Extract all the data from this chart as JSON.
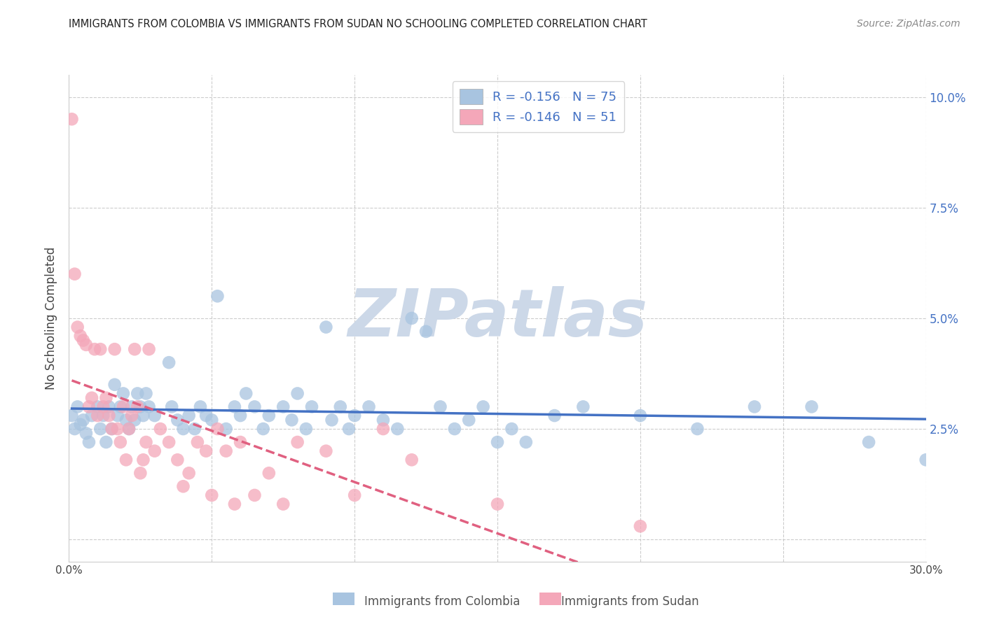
{
  "title": "IMMIGRANTS FROM COLOMBIA VS IMMIGRANTS FROM SUDAN NO SCHOOLING COMPLETED CORRELATION CHART",
  "source": "Source: ZipAtlas.com",
  "ylabel": "No Schooling Completed",
  "xlim": [
    0.0,
    0.3
  ],
  "ylim": [
    -0.005,
    0.105
  ],
  "colombia_color": "#a8c4e0",
  "sudan_color": "#f4a7b9",
  "colombia_line_color": "#4472c4",
  "sudan_line_color": "#e06080",
  "colombia_R": -0.156,
  "colombia_N": 75,
  "sudan_R": -0.146,
  "sudan_N": 51,
  "watermark": "ZIPatlas",
  "watermark_color": "#ccd8e8",
  "legend_label_1": "Immigrants from Colombia",
  "legend_label_2": "Immigrants from Sudan",
  "colombia_scatter": [
    [
      0.001,
      0.028
    ],
    [
      0.002,
      0.025
    ],
    [
      0.003,
      0.03
    ],
    [
      0.004,
      0.026
    ],
    [
      0.005,
      0.027
    ],
    [
      0.006,
      0.024
    ],
    [
      0.007,
      0.022
    ],
    [
      0.008,
      0.028
    ],
    [
      0.01,
      0.03
    ],
    [
      0.011,
      0.025
    ],
    [
      0.012,
      0.028
    ],
    [
      0.013,
      0.022
    ],
    [
      0.014,
      0.03
    ],
    [
      0.015,
      0.025
    ],
    [
      0.016,
      0.035
    ],
    [
      0.017,
      0.028
    ],
    [
      0.018,
      0.03
    ],
    [
      0.019,
      0.033
    ],
    [
      0.02,
      0.027
    ],
    [
      0.021,
      0.025
    ],
    [
      0.022,
      0.03
    ],
    [
      0.023,
      0.027
    ],
    [
      0.024,
      0.033
    ],
    [
      0.025,
      0.03
    ],
    [
      0.026,
      0.028
    ],
    [
      0.027,
      0.033
    ],
    [
      0.028,
      0.03
    ],
    [
      0.03,
      0.028
    ],
    [
      0.035,
      0.04
    ],
    [
      0.036,
      0.03
    ],
    [
      0.038,
      0.027
    ],
    [
      0.04,
      0.025
    ],
    [
      0.042,
      0.028
    ],
    [
      0.044,
      0.025
    ],
    [
      0.046,
      0.03
    ],
    [
      0.048,
      0.028
    ],
    [
      0.05,
      0.027
    ],
    [
      0.052,
      0.055
    ],
    [
      0.055,
      0.025
    ],
    [
      0.058,
      0.03
    ],
    [
      0.06,
      0.028
    ],
    [
      0.062,
      0.033
    ],
    [
      0.065,
      0.03
    ],
    [
      0.068,
      0.025
    ],
    [
      0.07,
      0.028
    ],
    [
      0.075,
      0.03
    ],
    [
      0.078,
      0.027
    ],
    [
      0.08,
      0.033
    ],
    [
      0.083,
      0.025
    ],
    [
      0.085,
      0.03
    ],
    [
      0.09,
      0.048
    ],
    [
      0.092,
      0.027
    ],
    [
      0.095,
      0.03
    ],
    [
      0.098,
      0.025
    ],
    [
      0.1,
      0.028
    ],
    [
      0.105,
      0.03
    ],
    [
      0.11,
      0.027
    ],
    [
      0.115,
      0.025
    ],
    [
      0.12,
      0.05
    ],
    [
      0.125,
      0.047
    ],
    [
      0.13,
      0.03
    ],
    [
      0.135,
      0.025
    ],
    [
      0.14,
      0.027
    ],
    [
      0.145,
      0.03
    ],
    [
      0.15,
      0.022
    ],
    [
      0.155,
      0.025
    ],
    [
      0.16,
      0.022
    ],
    [
      0.17,
      0.028
    ],
    [
      0.18,
      0.03
    ],
    [
      0.2,
      0.028
    ],
    [
      0.22,
      0.025
    ],
    [
      0.24,
      0.03
    ],
    [
      0.26,
      0.03
    ],
    [
      0.28,
      0.022
    ],
    [
      0.3,
      0.018
    ]
  ],
  "sudan_scatter": [
    [
      0.001,
      0.095
    ],
    [
      0.002,
      0.06
    ],
    [
      0.003,
      0.048
    ],
    [
      0.004,
      0.046
    ],
    [
      0.005,
      0.045
    ],
    [
      0.006,
      0.044
    ],
    [
      0.007,
      0.03
    ],
    [
      0.008,
      0.032
    ],
    [
      0.009,
      0.043
    ],
    [
      0.01,
      0.028
    ],
    [
      0.011,
      0.043
    ],
    [
      0.012,
      0.03
    ],
    [
      0.013,
      0.032
    ],
    [
      0.014,
      0.028
    ],
    [
      0.015,
      0.025
    ],
    [
      0.016,
      0.043
    ],
    [
      0.017,
      0.025
    ],
    [
      0.018,
      0.022
    ],
    [
      0.019,
      0.03
    ],
    [
      0.02,
      0.018
    ],
    [
      0.021,
      0.025
    ],
    [
      0.022,
      0.028
    ],
    [
      0.023,
      0.043
    ],
    [
      0.024,
      0.03
    ],
    [
      0.025,
      0.015
    ],
    [
      0.026,
      0.018
    ],
    [
      0.027,
      0.022
    ],
    [
      0.028,
      0.043
    ],
    [
      0.03,
      0.02
    ],
    [
      0.032,
      0.025
    ],
    [
      0.035,
      0.022
    ],
    [
      0.038,
      0.018
    ],
    [
      0.04,
      0.012
    ],
    [
      0.042,
      0.015
    ],
    [
      0.045,
      0.022
    ],
    [
      0.048,
      0.02
    ],
    [
      0.05,
      0.01
    ],
    [
      0.052,
      0.025
    ],
    [
      0.055,
      0.02
    ],
    [
      0.058,
      0.008
    ],
    [
      0.06,
      0.022
    ],
    [
      0.065,
      0.01
    ],
    [
      0.07,
      0.015
    ],
    [
      0.075,
      0.008
    ],
    [
      0.08,
      0.022
    ],
    [
      0.09,
      0.02
    ],
    [
      0.1,
      0.01
    ],
    [
      0.11,
      0.025
    ],
    [
      0.12,
      0.018
    ],
    [
      0.15,
      0.008
    ],
    [
      0.2,
      0.003
    ]
  ]
}
